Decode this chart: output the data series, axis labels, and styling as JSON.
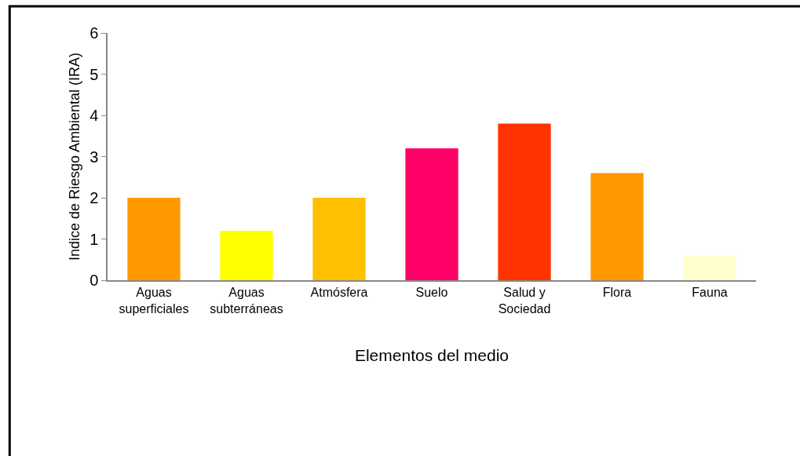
{
  "chart_data": {
    "type": "bar",
    "xlabel": "Elementos del medio",
    "ylabel": "Indice de Riesgo Ambiental (IRA)",
    "categories": [
      "Aguas\nsuperficiales",
      "Aguas\nsubterráneas",
      "Atmósfera",
      "Suelo",
      "Salud y\nSociedad",
      "Flora",
      "Fauna"
    ],
    "values": [
      2.0,
      1.2,
      2.0,
      3.2,
      3.8,
      2.6,
      0.6
    ],
    "colors": [
      "#ff9900",
      "#ffff00",
      "#ffc000",
      "#ff0066",
      "#ff3300",
      "#ff9900",
      "#ffffcc"
    ],
    "ylim": [
      0,
      6
    ],
    "yticks": [
      0,
      1,
      2,
      3,
      4,
      5,
      6
    ]
  }
}
